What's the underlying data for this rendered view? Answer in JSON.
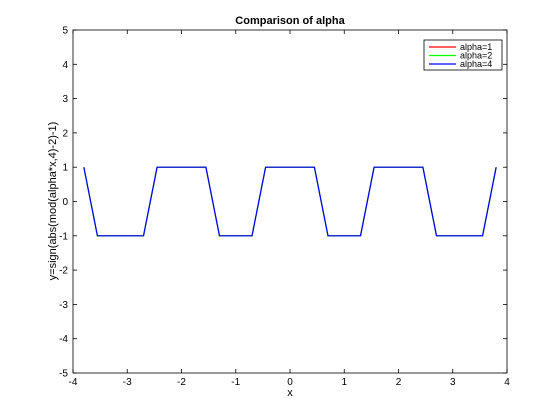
{
  "chart_data": {
    "type": "line",
    "title": "Comparison of alpha",
    "xlabel": "x",
    "ylabel": "y=sign(abs(mod(alpha*x,4)-2)-1)",
    "xlim": [
      -4,
      4
    ],
    "ylim": [
      -5,
      5
    ],
    "xticks": [
      -4,
      -3,
      -2,
      -1,
      0,
      1,
      2,
      3,
      4
    ],
    "yticks": [
      -5,
      -4,
      -3,
      -2,
      -1,
      0,
      1,
      2,
      3,
      4,
      5
    ],
    "xtick_labels": [
      "-4",
      "-3",
      "-2",
      "-1",
      "0",
      "1",
      "2",
      "3",
      "4"
    ],
    "ytick_labels": [
      "-5",
      "-4",
      "-3",
      "-2",
      "-1",
      "0",
      "1",
      "2",
      "3",
      "4",
      "5"
    ],
    "grid": false,
    "legend_position": "top-right",
    "series": [
      {
        "name": "alpha=1",
        "color": "#ff0000",
        "alpha": 1,
        "points": [
          [
            -3.8,
            1
          ],
          [
            -3.55,
            -1
          ],
          [
            -2.7,
            -1
          ],
          [
            -2.45,
            1
          ],
          [
            -1.55,
            1
          ],
          [
            -1.3,
            -1
          ],
          [
            -0.7,
            -1
          ],
          [
            -0.45,
            1
          ],
          [
            0.45,
            1
          ],
          [
            0.7,
            -1
          ],
          [
            1.3,
            -1
          ],
          [
            1.55,
            1
          ],
          [
            2.45,
            1
          ],
          [
            2.7,
            -1
          ],
          [
            3.55,
            -1
          ],
          [
            3.8,
            1
          ]
        ]
      },
      {
        "name": "alpha=2",
        "color": "#00ff00",
        "alpha": 2,
        "points": [
          [
            -3.8,
            1
          ],
          [
            -3.55,
            -1
          ],
          [
            -2.7,
            -1
          ],
          [
            -2.45,
            1
          ],
          [
            -1.55,
            1
          ],
          [
            -1.3,
            -1
          ],
          [
            -0.7,
            -1
          ],
          [
            -0.45,
            1
          ],
          [
            0.45,
            1
          ],
          [
            0.7,
            -1
          ],
          [
            1.3,
            -1
          ],
          [
            1.55,
            1
          ],
          [
            2.45,
            1
          ],
          [
            2.7,
            -1
          ],
          [
            3.55,
            -1
          ],
          [
            3.8,
            1
          ]
        ]
      },
      {
        "name": "alpha=4",
        "color": "#0000ff",
        "alpha": 4,
        "points": [
          [
            -3.8,
            1
          ],
          [
            -3.55,
            -1
          ],
          [
            -2.7,
            -1
          ],
          [
            -2.45,
            1
          ],
          [
            -1.55,
            1
          ],
          [
            -1.3,
            -1
          ],
          [
            -0.7,
            -1
          ],
          [
            -0.45,
            1
          ],
          [
            0.45,
            1
          ],
          [
            0.7,
            -1
          ],
          [
            1.3,
            -1
          ],
          [
            1.55,
            1
          ],
          [
            2.45,
            1
          ],
          [
            2.7,
            -1
          ],
          [
            3.55,
            -1
          ],
          [
            3.8,
            1
          ]
        ]
      }
    ]
  }
}
